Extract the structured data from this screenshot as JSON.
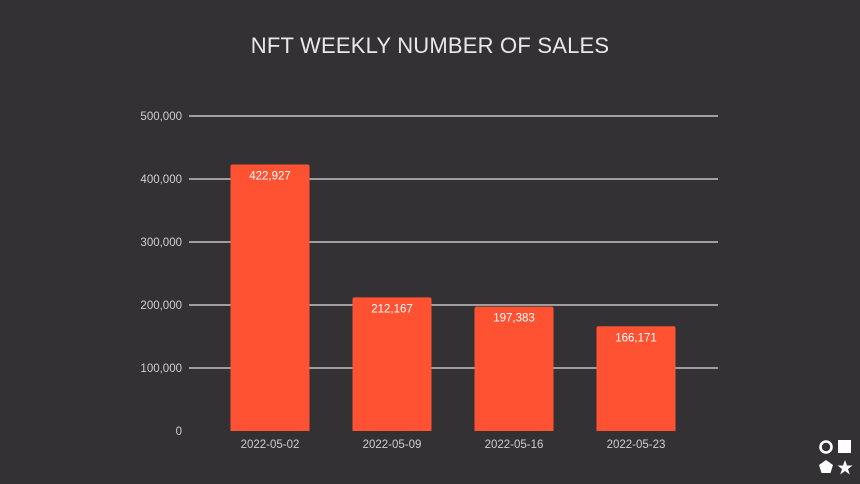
{
  "chart_data": {
    "type": "bar",
    "title": "NFT WEEKLY NUMBER OF SALES",
    "categories": [
      "2022-05-02",
      "2022-05-09",
      "2022-05-16",
      "2022-05-23"
    ],
    "values": [
      422927,
      212167,
      197383,
      166171
    ],
    "data_labels": [
      "422,927",
      "212,167",
      "197,383",
      "166,171"
    ],
    "xlabel": "",
    "ylabel": "",
    "ylim": [
      0,
      500000
    ],
    "yticks": [
      0,
      100000,
      200000,
      300000,
      400000,
      500000
    ],
    "ytick_labels": [
      "0",
      "100,000",
      "200,000",
      "300,000",
      "400,000",
      "500,000"
    ],
    "grid": true,
    "legend": "none",
    "colors": {
      "bar": "#ff5233",
      "background": "#333134",
      "grid": "#e0e0e0",
      "text": "#cfcfcf"
    }
  },
  "logo": {
    "icon": "shapes-logo-icon"
  }
}
